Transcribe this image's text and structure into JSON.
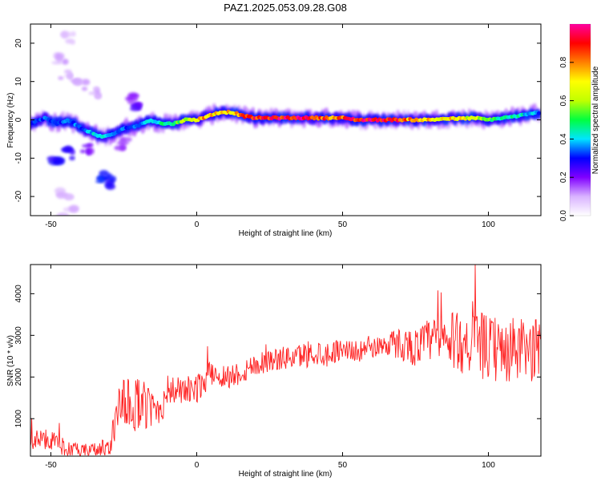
{
  "figure": {
    "title": "PAZ1.2025.053.09.28.G08"
  },
  "chart_data": [
    {
      "type": "heatmap",
      "title": "PAZ1.2025.053.09.28.G08",
      "xlabel": "Height of straight line (km)",
      "ylabel": "Frequency (Hz)",
      "xlim": [
        -57,
        118
      ],
      "ylim": [
        -25,
        25
      ],
      "x_ticks": [
        -50,
        0,
        50,
        100
      ],
      "y_ticks": [
        -20,
        -10,
        0,
        10,
        20
      ],
      "colorbar": {
        "label": "Normalized spectral amplitude",
        "range": [
          0.0,
          1.0
        ],
        "ticks": [
          "0.0",
          "0.2",
          "0.4",
          "0.6",
          "0.8"
        ],
        "tick_values": [
          0,
          0.2,
          0.4,
          0.6,
          0.8
        ],
        "colormap": [
          "#ffffff",
          "#d9b3ff",
          "#8000ff",
          "#0000ff",
          "#00e5ff",
          "#00ff40",
          "#c0ff00",
          "#ffff00",
          "#ff8000",
          "#ff0000",
          "#ff00a0"
        ]
      },
      "ridge": {
        "x": [
          -57,
          -52,
          -48,
          -44,
          -40,
          -36,
          -32,
          -28,
          -24,
          -20,
          -16,
          -12,
          -8,
          -4,
          0,
          4,
          8,
          12,
          16,
          20,
          25,
          30,
          35,
          40,
          45,
          50,
          55,
          60,
          65,
          70,
          75,
          80,
          85,
          90,
          95,
          100,
          105,
          110,
          114,
          118
        ],
        "y": [
          -1,
          0.5,
          -1,
          0,
          -2,
          -3.5,
          -4.5,
          -3.5,
          -2,
          -1.5,
          0,
          -1,
          -1,
          0,
          0,
          1,
          2,
          2,
          1,
          0.5,
          0.5,
          0.5,
          0.5,
          0.5,
          0.5,
          0.5,
          0,
          0,
          0,
          0,
          0,
          0,
          0.3,
          0.3,
          0.5,
          0,
          0.5,
          1,
          1.5,
          2
        ],
        "amplitude": [
          0.3,
          0.35,
          0.3,
          0.35,
          0.35,
          0.4,
          0.4,
          0.35,
          0.35,
          0.35,
          0.4,
          0.45,
          0.5,
          0.6,
          0.75,
          0.8,
          0.7,
          0.75,
          0.85,
          0.9,
          0.9,
          0.95,
          0.95,
          0.9,
          0.85,
          0.85,
          0.9,
          0.95,
          0.95,
          0.85,
          0.8,
          0.75,
          0.75,
          0.7,
          0.65,
          0.55,
          0.45,
          0.45,
          0.4,
          0.35
        ]
      },
      "scatter_blobs": [
        {
          "x": -48,
          "y": -10,
          "level": 0.25
        },
        {
          "x": -44,
          "y": -9,
          "level": 0.25
        },
        {
          "x": -32,
          "y": -15,
          "level": 0.3
        },
        {
          "x": -30,
          "y": -16,
          "level": 0.25
        },
        {
          "x": -20,
          "y": 3,
          "level": 0.2
        },
        {
          "x": -22,
          "y": 5,
          "level": 0.15
        },
        {
          "x": -45,
          "y": 12,
          "level": 0.08
        },
        {
          "x": -47,
          "y": 16,
          "level": 0.08
        },
        {
          "x": -44,
          "y": 21,
          "level": 0.06
        },
        {
          "x": -40,
          "y": 9,
          "level": 0.08
        },
        {
          "x": -35,
          "y": 7,
          "level": 0.08
        },
        {
          "x": -45,
          "y": -20,
          "level": 0.08
        },
        {
          "x": -44,
          "y": -24,
          "level": 0.06
        },
        {
          "x": -26,
          "y": -6,
          "level": 0.15
        },
        {
          "x": -38,
          "y": -7,
          "level": 0.2
        }
      ]
    },
    {
      "type": "line",
      "xlabel": "Height of straight line (km)",
      "ylabel": "SNR (10 * v/v)",
      "xlim": [
        -57,
        118
      ],
      "ylim": [
        100,
        4700
      ],
      "x_ticks": [
        -50,
        0,
        50,
        100
      ],
      "y_ticks": [
        1000,
        2000,
        3000,
        4000
      ],
      "line_color": "#ff2020",
      "series": [
        {
          "x": [
            -57,
            -50,
            -45,
            -40,
            -35,
            -30,
            -28,
            -26,
            -22,
            -18,
            -15,
            -12,
            -10,
            -5,
            0,
            5,
            10,
            15,
            20,
            25,
            30,
            35,
            40,
            45,
            50,
            55,
            60,
            65,
            70,
            75,
            80,
            85,
            90,
            95,
            100,
            105,
            110,
            115,
            118
          ],
          "values": [
            500,
            500,
            300,
            200,
            250,
            300,
            900,
            1200,
            1400,
            1300,
            1200,
            1300,
            1700,
            1650,
            1700,
            2100,
            2000,
            2100,
            2300,
            2400,
            2450,
            2500,
            2600,
            2550,
            2700,
            2600,
            2700,
            2800,
            2800,
            2700,
            2900,
            2850,
            2850,
            2800,
            2700,
            2600,
            2650,
            2600,
            2800
          ],
          "noise": [
            250,
            250,
            200,
            180,
            200,
            250,
            550,
            700,
            700,
            600,
            500,
            450,
            350,
            350,
            350,
            300,
            300,
            300,
            300,
            280,
            280,
            300,
            350,
            300,
            250,
            250,
            250,
            300,
            400,
            450,
            550,
            650,
            750,
            800,
            800,
            800,
            800,
            750,
            700
          ]
        }
      ]
    }
  ]
}
